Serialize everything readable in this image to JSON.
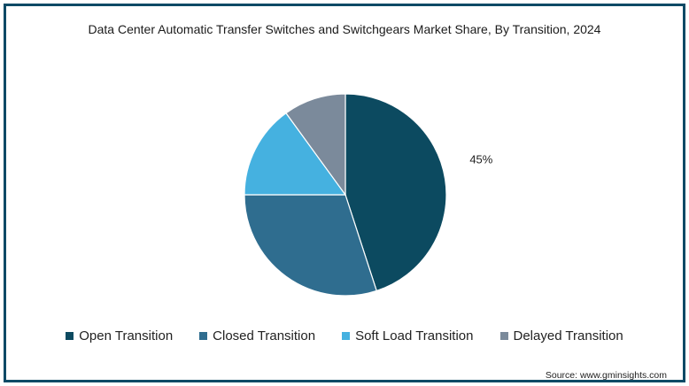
{
  "chart_data": {
    "type": "pie",
    "title": "Data Center Automatic Transfer Switches and Switchgears Market Share, By Transition, 2024",
    "categories": [
      "Open Transition",
      "Closed Transition",
      "Soft Load Transition",
      "Delayed Transition"
    ],
    "values": [
      45,
      30,
      15,
      10
    ],
    "colors": [
      "#0c4a60",
      "#2f6d8f",
      "#45b1e0",
      "#7b8a9b"
    ],
    "data_labels": [
      "45%",
      "",
      "",
      ""
    ],
    "legend_position": "bottom",
    "source": "Source: www.gminsights.com"
  }
}
